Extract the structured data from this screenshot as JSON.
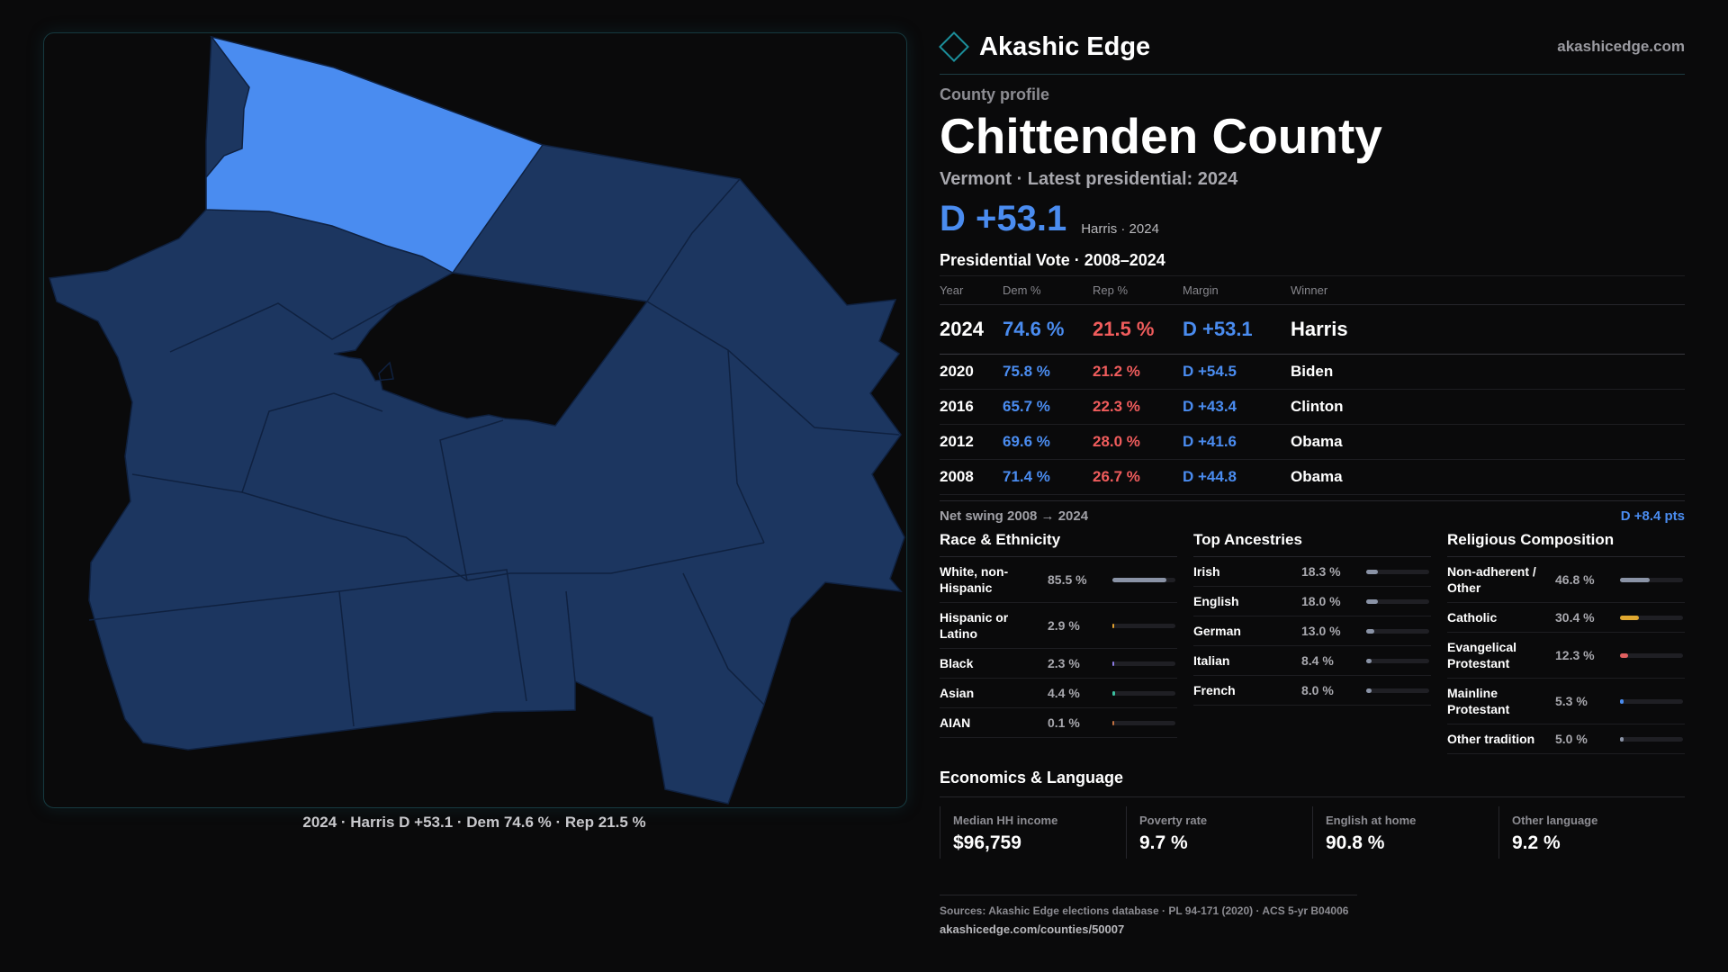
{
  "brand": {
    "name": "Akashic Edge",
    "site": "akashicedge.com"
  },
  "profile": {
    "eyebrow": "County profile",
    "county": "Chittenden County",
    "subline": "Vermont · Latest presidential: 2024",
    "margin": "D +53.1",
    "margin_note": "Harris · 2024"
  },
  "map": {
    "caption": "2024 · Harris D +53.1 · Dem 74.6 % · Rep 21.5 %",
    "colors": {
      "highlight": "#4a8cf0",
      "base": "#1c3660",
      "border": "#0f2140"
    }
  },
  "votes": {
    "title": "Presidential Vote · 2008–2024",
    "headers": {
      "year": "Year",
      "dem": "Dem %",
      "rep": "Rep %",
      "margin": "Margin",
      "winner": "Winner"
    },
    "rows": [
      {
        "year": "2024",
        "dem": "74.6 %",
        "rep": "21.5 %",
        "margin": "D +53.1",
        "winner": "Harris"
      },
      {
        "year": "2020",
        "dem": "75.8 %",
        "rep": "21.2 %",
        "margin": "D +54.5",
        "winner": "Biden"
      },
      {
        "year": "2016",
        "dem": "65.7 %",
        "rep": "22.3 %",
        "margin": "D +43.4",
        "winner": "Clinton"
      },
      {
        "year": "2012",
        "dem": "69.6 %",
        "rep": "28.0 %",
        "margin": "D +41.6",
        "winner": "Obama"
      },
      {
        "year": "2008",
        "dem": "71.4 %",
        "rep": "26.7 %",
        "margin": "D +44.8",
        "winner": "Obama"
      }
    ],
    "swing_label": "Net swing 2008 → 2024",
    "swing_value": "D +8.4 pts"
  },
  "race": {
    "title": "Race & Ethnicity",
    "items": [
      {
        "label": "White, non-Hispanic",
        "pct": "85.5 %",
        "value": 85.5,
        "color": "#8a93a6"
      },
      {
        "label": "Hispanic or Latino",
        "pct": "2.9 %",
        "value": 2.9,
        "color": "#e0a030"
      },
      {
        "label": "Black",
        "pct": "2.3 %",
        "value": 2.3,
        "color": "#8a7ae0"
      },
      {
        "label": "Asian",
        "pct": "4.4 %",
        "value": 4.4,
        "color": "#3cc0a0"
      },
      {
        "label": "AIAN",
        "pct": "0.1 %",
        "value": 0.1,
        "color": "#c07040"
      }
    ]
  },
  "ancestry": {
    "title": "Top Ancestries",
    "items": [
      {
        "label": "Irish",
        "pct": "18.3 %",
        "value": 18.3,
        "color": "#8a93a6"
      },
      {
        "label": "English",
        "pct": "18.0 %",
        "value": 18.0,
        "color": "#8a93a6"
      },
      {
        "label": "German",
        "pct": "13.0 %",
        "value": 13.0,
        "color": "#8a93a6"
      },
      {
        "label": "Italian",
        "pct": "8.4 %",
        "value": 8.4,
        "color": "#8a93a6"
      },
      {
        "label": "French",
        "pct": "8.0 %",
        "value": 8.0,
        "color": "#8a93a6"
      }
    ]
  },
  "religion": {
    "title": "Religious Composition",
    "items": [
      {
        "label": "Non-adherent / Other",
        "pct": "46.8 %",
        "value": 46.8,
        "color": "#8a93a6"
      },
      {
        "label": "Catholic",
        "pct": "30.4 %",
        "value": 30.4,
        "color": "#e0a830"
      },
      {
        "label": "Evangelical Protestant",
        "pct": "12.3 %",
        "value": 12.3,
        "color": "#e06060"
      },
      {
        "label": "Mainline Protestant",
        "pct": "5.3 %",
        "value": 5.3,
        "color": "#4a8cf0"
      },
      {
        "label": "Other tradition",
        "pct": "5.0 %",
        "value": 5.0,
        "color": "#8a93a6"
      }
    ]
  },
  "economics": {
    "title": "Economics & Language",
    "items": [
      {
        "label": "Median HH income",
        "value": "$96,759"
      },
      {
        "label": "Poverty rate",
        "value": "9.7 %"
      },
      {
        "label": "English at home",
        "value": "90.8 %"
      },
      {
        "label": "Other language",
        "value": "9.2 %"
      }
    ]
  },
  "sources": {
    "line1": "Sources: Akashic Edge elections database · PL 94-171 (2020) · ACS 5-yr B04006",
    "line2": "akashicedge.com/counties/50007"
  }
}
